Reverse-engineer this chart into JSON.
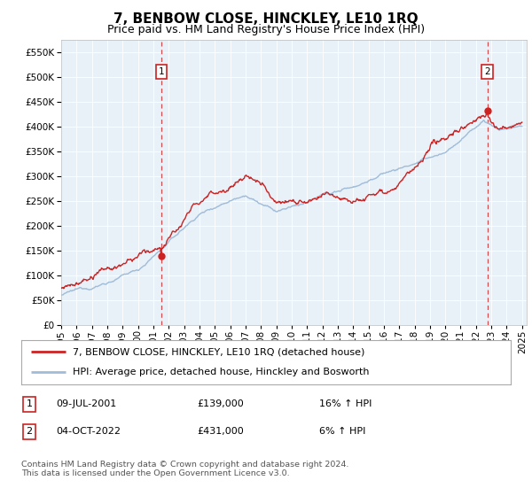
{
  "title": "7, BENBOW CLOSE, HINCKLEY, LE10 1RQ",
  "subtitle": "Price paid vs. HM Land Registry's House Price Index (HPI)",
  "legend_line1": "7, BENBOW CLOSE, HINCKLEY, LE10 1RQ (detached house)",
  "legend_line2": "HPI: Average price, detached house, Hinckley and Bosworth",
  "table_row1_date": "09-JUL-2001",
  "table_row1_price": "£139,000",
  "table_row1_hpi": "16% ↑ HPI",
  "table_row2_date": "04-OCT-2022",
  "table_row2_price": "£431,000",
  "table_row2_hpi": "6% ↑ HPI",
  "footer": "Contains HM Land Registry data © Crown copyright and database right 2024.\nThis data is licensed under the Open Government Licence v3.0.",
  "hpi_color": "#a0bcd8",
  "price_color": "#cc2222",
  "plot_bg_color": "#e8f0f8",
  "ylim": [
    0,
    575000
  ],
  "yticks": [
    0,
    50000,
    100000,
    150000,
    200000,
    250000,
    300000,
    350000,
    400000,
    450000,
    500000,
    550000
  ],
  "sale1_year": 2001.52,
  "sale1_price": 139000,
  "sale2_year": 2022.75,
  "sale2_price": 431000
}
